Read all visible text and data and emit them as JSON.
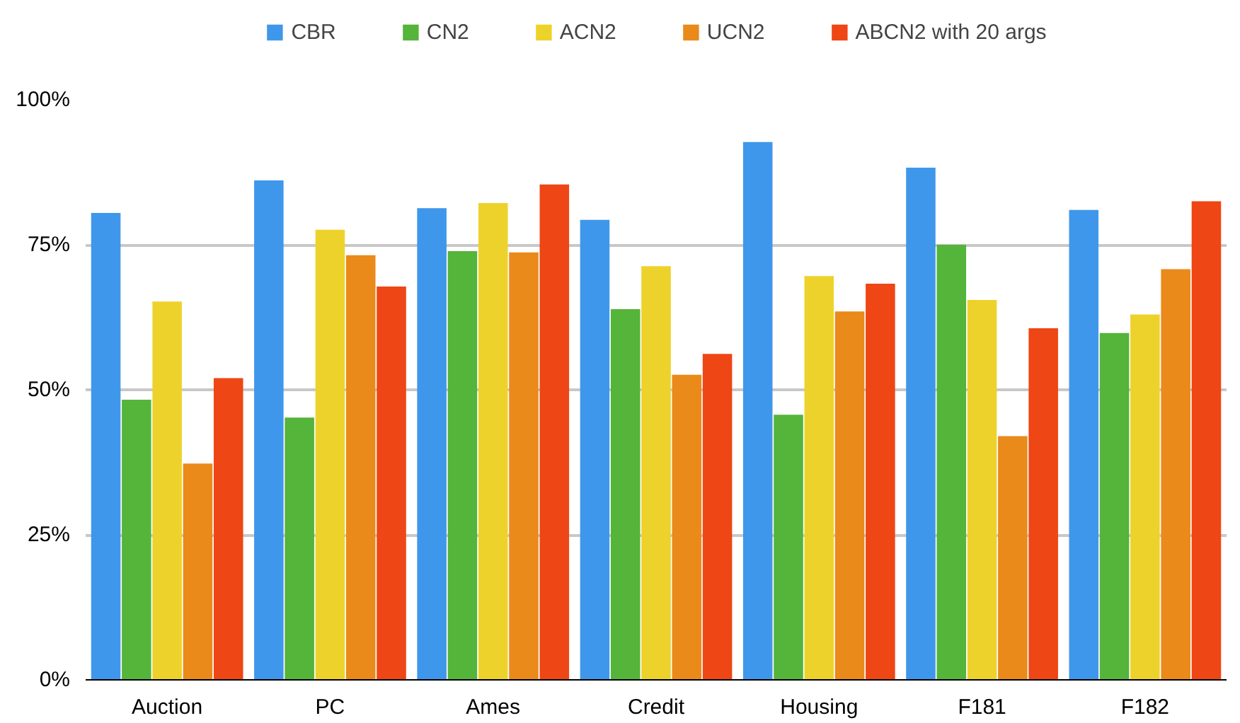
{
  "chart_data": {
    "type": "bar",
    "categories": [
      "Auction",
      "PC",
      "Ames",
      "Credit",
      "Housing",
      "F181",
      "F182"
    ],
    "series": [
      {
        "name": "CBR",
        "color": "#3f97eb",
        "values": [
          80.5,
          86.1,
          81.3,
          79.3,
          92.7,
          88.3,
          81.0
        ]
      },
      {
        "name": "CN2",
        "color": "#55b43a",
        "values": [
          48.3,
          45.2,
          73.9,
          63.9,
          45.7,
          75.0,
          59.8
        ]
      },
      {
        "name": "ACN2",
        "color": "#eed22c",
        "values": [
          65.2,
          77.6,
          82.2,
          71.3,
          69.6,
          65.5,
          63.0
        ]
      },
      {
        "name": "UCN2",
        "color": "#ea8a1a",
        "values": [
          37.3,
          73.2,
          73.7,
          52.6,
          63.5,
          42.0,
          70.8
        ]
      },
      {
        "name": "ABCN2 with 20 args",
        "color": "#ee4614",
        "values": [
          52.0,
          67.8,
          85.4,
          56.2,
          68.3,
          60.6,
          82.5
        ]
      }
    ],
    "ylim": [
      0,
      100
    ],
    "yticks": [
      {
        "value": 0,
        "label": "0%"
      },
      {
        "value": 25,
        "label": "25%"
      },
      {
        "value": 50,
        "label": "50%"
      },
      {
        "value": 75,
        "label": "75%"
      },
      {
        "value": 100,
        "label": "100%"
      }
    ],
    "grid": "y",
    "legend": "top"
  }
}
